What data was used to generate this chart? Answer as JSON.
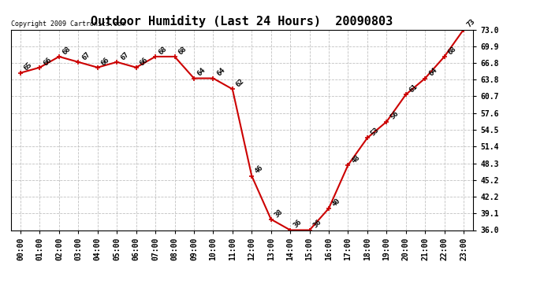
{
  "title": "Outdoor Humidity (Last 24 Hours)  20090803",
  "copyright": "Copyright 2009 Cartronics.com",
  "hours": [
    0,
    1,
    2,
    3,
    4,
    5,
    6,
    7,
    8,
    9,
    10,
    11,
    12,
    13,
    14,
    15,
    16,
    17,
    18,
    19,
    20,
    21,
    22,
    23
  ],
  "values": [
    65,
    66,
    68,
    67,
    66,
    67,
    66,
    68,
    68,
    64,
    64,
    62,
    46,
    38,
    36,
    36,
    40,
    48,
    53,
    56,
    61,
    64,
    68,
    73
  ],
  "yticks": [
    36.0,
    39.1,
    42.2,
    45.2,
    48.3,
    51.4,
    54.5,
    57.6,
    60.7,
    63.8,
    66.8,
    69.9,
    73.0
  ],
  "xtick_labels": [
    "00:00",
    "01:00",
    "02:00",
    "03:00",
    "04:00",
    "05:00",
    "06:00",
    "07:00",
    "08:00",
    "09:00",
    "10:00",
    "11:00",
    "12:00",
    "13:00",
    "14:00",
    "15:00",
    "16:00",
    "17:00",
    "18:00",
    "19:00",
    "20:00",
    "21:00",
    "22:00",
    "23:00"
  ],
  "line_color": "#cc0000",
  "marker": "+",
  "bg_color": "#ffffff",
  "grid_color": "#bbbbbb",
  "title_fontsize": 11,
  "label_fontsize": 7,
  "annotation_fontsize": 6.5,
  "copyright_fontsize": 6
}
